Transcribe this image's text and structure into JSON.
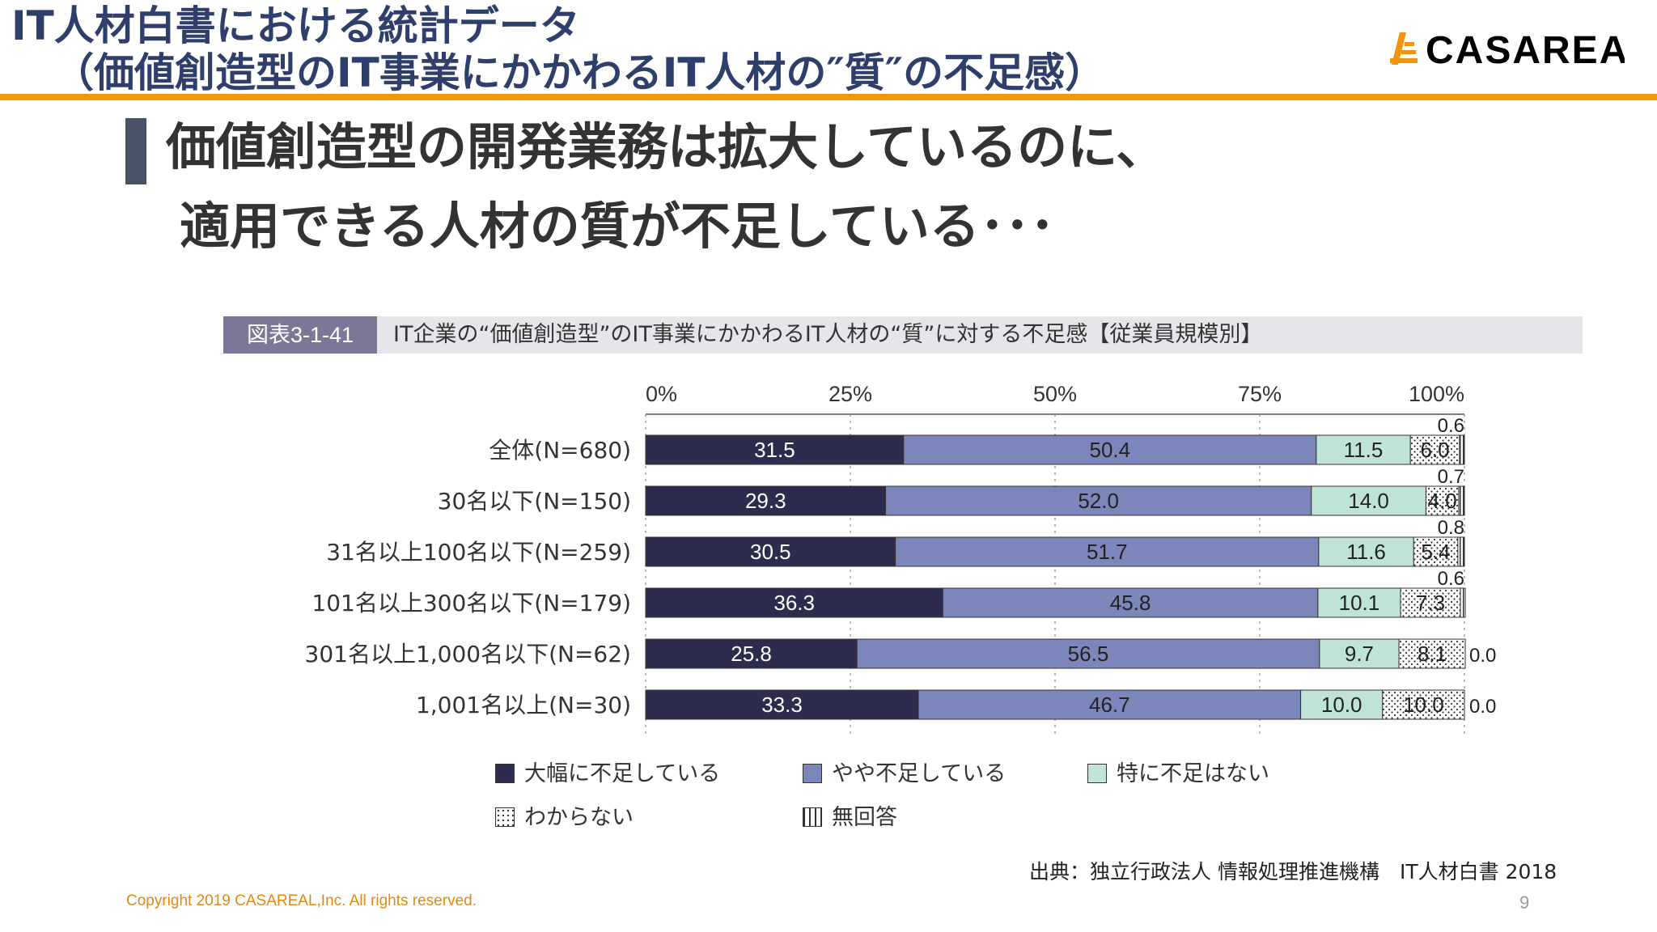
{
  "header": {
    "title_line1": "IT人材白書における統計データ",
    "title_line2": "（価値創造型のIT事業にかかわるIT人材の″質″の不足感）",
    "logo_text": "CASAREAL"
  },
  "headline": {
    "line1": "価値創造型の開発業務は拡大しているのに、",
    "line2": "適用できる人材の質が不足している･･･"
  },
  "figure": {
    "label": "図表3-1-41",
    "title": "IT企業の“価値創造型”のIT事業にかかわるIT人材の“質”に対する不足感【従業員規模別】"
  },
  "chart_data": {
    "type": "bar",
    "orientation": "horizontal",
    "stacked": true,
    "xlim": [
      0,
      100
    ],
    "x_ticks": [
      "0%",
      "25%",
      "50%",
      "75%",
      "100%"
    ],
    "categories": [
      "全体(N=680)",
      "30名以下(N=150)",
      "31名以上100名以下(N=259)",
      "101名以上300名以下(N=179)",
      "301名以上1,000名以下(N=62)",
      "1,001名以上(N=30)"
    ],
    "series": [
      {
        "name": "大幅に不足している",
        "color": "#2d2c4e",
        "pattern": "solid",
        "values": [
          31.5,
          29.3,
          30.5,
          36.3,
          25.8,
          33.3
        ]
      },
      {
        "name": "やや不足している",
        "color": "#7b86bb",
        "pattern": "solid",
        "values": [
          50.4,
          52.0,
          51.7,
          45.8,
          56.5,
          46.7
        ]
      },
      {
        "name": "特に不足はない",
        "color": "#bfe3d8",
        "pattern": "solid",
        "values": [
          11.5,
          14.0,
          11.6,
          10.1,
          9.7,
          10.0
        ]
      },
      {
        "name": "わからない",
        "color": "#ffffff",
        "pattern": "dots",
        "values": [
          6.0,
          4.0,
          5.4,
          7.3,
          8.1,
          10.0
        ]
      },
      {
        "name": "無回答",
        "color": "#ffffff",
        "pattern": "vlines",
        "values": [
          0.6,
          0.7,
          0.8,
          0.6,
          0.0,
          0.0
        ]
      }
    ],
    "labels": [
      [
        "31.5",
        "50.4",
        "11.5",
        "6.0",
        "0.6"
      ],
      [
        "29.3",
        "52.0",
        "14.0",
        "4.0",
        "0.7"
      ],
      [
        "30.5",
        "51.7",
        "11.6",
        "5.4",
        "0.8"
      ],
      [
        "36.3",
        "45.8",
        "10.1",
        "7.3",
        "0.6"
      ],
      [
        "25.8",
        "56.5",
        "9.7",
        "8.1",
        "0.0"
      ],
      [
        "33.3",
        "46.7",
        "10.0",
        "10.0",
        "0.0"
      ]
    ],
    "legend_position": "bottom",
    "grid": "dashed vertical at 25% intervals"
  },
  "footer": {
    "source": "出典：独立行政法人 情報処理推進機構　IT人材白書 2018",
    "copyright": "Copyright 2019 CASAREAL,Inc. All rights reserved.",
    "page_number": "9"
  }
}
